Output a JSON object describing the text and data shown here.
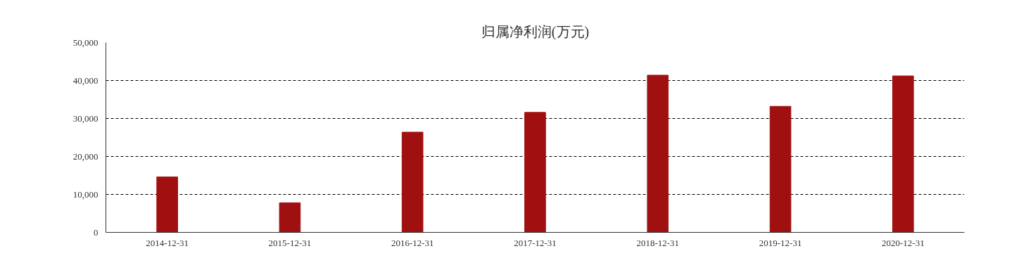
{
  "chart_data": {
    "type": "bar",
    "title": "归属净利润(万元)",
    "categories": [
      "2014-12-31",
      "2015-12-31",
      "2016-12-31",
      "2017-12-31",
      "2018-12-31",
      "2019-12-31",
      "2020-12-31"
    ],
    "values": [
      14600,
      7800,
      26400,
      31600,
      41400,
      33200,
      41200
    ],
    "color": "#a01010",
    "ylim": [
      0,
      50000
    ],
    "yticks": [
      0,
      {
        "value": 10000,
        "label": "10,000"
      },
      {
        "value": 20000,
        "label": "20,000"
      },
      {
        "value": 30000,
        "label": "30,000"
      },
      {
        "value": 40000,
        "label": "40,000"
      },
      {
        "value": 50000,
        "label": "50,000"
      }
    ],
    "grid": "y"
  }
}
